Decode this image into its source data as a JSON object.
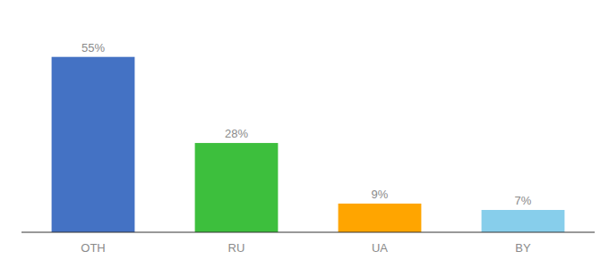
{
  "chart_data": {
    "type": "bar",
    "categories": [
      "OTH",
      "RU",
      "UA",
      "BY"
    ],
    "values": [
      55,
      28,
      9,
      7
    ],
    "value_labels": [
      "55%",
      "28%",
      "9%",
      "7%"
    ],
    "colors": [
      "#4472C4",
      "#3DBF3D",
      "#FFA500",
      "#87CEEB"
    ],
    "ylim": [
      0,
      65
    ],
    "data_labels": true,
    "tick_labels": "x",
    "grid": false
  }
}
